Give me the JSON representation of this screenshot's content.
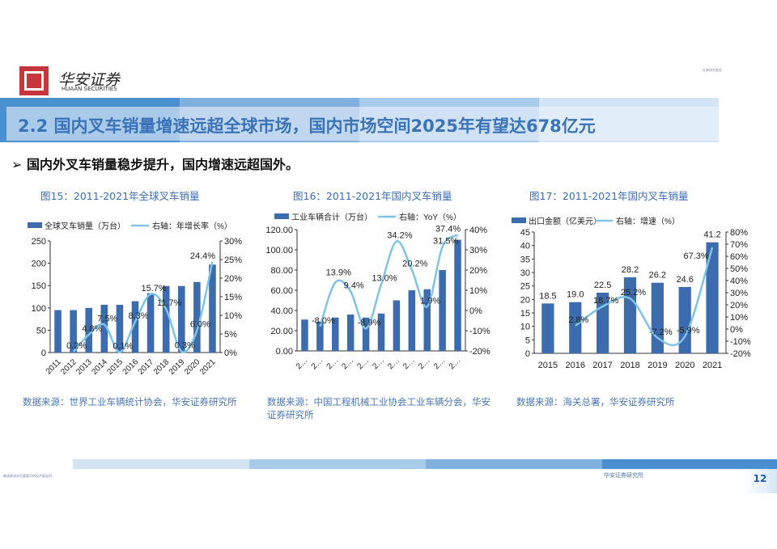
{
  "header": {
    "logo_cn": "华安证券",
    "logo_en": "HUAAN SECURITIES",
    "corner_text": "证券研究报告",
    "title": "2.2 国内叉车销量增速远超全球市场，国内市场空间2025年有望达678亿元",
    "bullet": "国内外叉车销量稳步提升，国内增速远超国外。"
  },
  "colors": {
    "bar": "#3c6cae",
    "line": "#7fc4e6",
    "title": "#3a73b8"
  },
  "chart_data": [
    {
      "type": "bar+line",
      "title": "图15：2011-2021年全球叉车销量",
      "categories": [
        "2011",
        "2012",
        "2013",
        "2014",
        "2015",
        "2016",
        "2017",
        "2018",
        "2019",
        "2020",
        "2021"
      ],
      "series": [
        {
          "name": "全球叉车销量（万台）",
          "type": "bar",
          "axis": "left",
          "values": [
            95,
            95,
            100,
            107,
            107,
            115,
            133,
            149,
            149,
            158,
            197
          ]
        },
        {
          "name": "右轴：年增长率（%）",
          "type": "line",
          "axis": "right",
          "values": [
            null,
            0.2,
            4.8,
            7.5,
            0.1,
            8.3,
            15.7,
            11.7,
            0.3,
            6.0,
            24.4
          ],
          "labels": [
            "",
            "0.2%",
            "4.8%",
            "7.5%",
            "0.1%",
            "8.3%",
            "15.7%",
            "11.7%",
            "0.3%",
            "6.0%",
            "24.4%"
          ]
        }
      ],
      "ylim": [
        0,
        250
      ],
      "yticks": [
        "0",
        "50",
        "100",
        "150",
        "200",
        "250"
      ],
      "y2lim": [
        0,
        30
      ],
      "y2ticks": [
        "0%",
        "5%",
        "10%",
        "15%",
        "20%",
        "25%",
        "30%"
      ],
      "xlabel_rotated": true,
      "legend": "top",
      "source": "数据来源：世界工业车辆统计协会，华安证券研究所"
    },
    {
      "type": "bar+line",
      "title": "图16：2011-2021年国内叉车销量",
      "categories": [
        "2…",
        "2…",
        "2…",
        "2…",
        "2…",
        "2…",
        "2…",
        "2…",
        "2…",
        "2…",
        "2…"
      ],
      "series": [
        {
          "name": "工业车辆合计（万台）",
          "type": "bar",
          "axis": "left",
          "values": [
            31,
            29,
            33,
            36,
            33,
            37,
            50,
            60,
            61,
            80,
            110
          ]
        },
        {
          "name": "右轴：YoY（%）",
          "type": "line",
          "axis": "right",
          "values": [
            null,
            -8.0,
            13.9,
            9.4,
            -8.9,
            13.0,
            34.2,
            20.2,
            1.9,
            31.5,
            37.4
          ],
          "labels": [
            "",
            "-8.0%",
            "13.9%",
            "9.4%",
            "-8.9%",
            "13.0%",
            "34.2%",
            "20.2%",
            "1.9%",
            "31.5%",
            "37.4%"
          ]
        }
      ],
      "ylim": [
        0,
        120
      ],
      "yticks": [
        "0.00",
        "20.00",
        "40.00",
        "60.00",
        "80.00",
        "100.00",
        "120.00"
      ],
      "y2lim": [
        -20,
        40
      ],
      "y2ticks": [
        "-20%",
        "-10%",
        "0%",
        "10%",
        "20%",
        "30%",
        "40%"
      ],
      "xlabel_rotated": true,
      "legend": "top",
      "source": "数据来源：中国工程机械工业协会工业车辆分会，华安证券研究所"
    },
    {
      "type": "bar+line",
      "title": "图17：2011-2021年国内叉车销量",
      "categories": [
        "2015",
        "2016",
        "2017",
        "2018",
        "2019",
        "2020",
        "2021"
      ],
      "series": [
        {
          "name": "出口金额（亿美元）",
          "type": "bar",
          "axis": "left",
          "values": [
            18.5,
            19.0,
            22.5,
            28.2,
            26.2,
            24.6,
            41.2
          ],
          "labels": [
            "18.5",
            "19.0",
            "22.5",
            "28.2",
            "26.2",
            "24.6",
            "41.2"
          ]
        },
        {
          "name": "右轴：增速（%）",
          "type": "line",
          "axis": "right",
          "values": [
            null,
            2.8,
            18.7,
            25.2,
            -7.2,
            -5.9,
            67.3
          ],
          "labels": [
            "",
            "2.8%",
            "18.7%",
            "25.2%",
            "-7.2%",
            "-5.9%",
            "67.3%"
          ]
        }
      ],
      "ylim": [
        0,
        45
      ],
      "yticks": [
        "0",
        "5",
        "10",
        "15",
        "20",
        "25",
        "30",
        "35",
        "40",
        "45"
      ],
      "y2lim": [
        -20,
        80
      ],
      "y2ticks": [
        "-20%",
        "-10%",
        "0%",
        "10%",
        "20%",
        "30%",
        "40%",
        "50%",
        "60%",
        "70%",
        "80%"
      ],
      "xlabel_rotated": false,
      "legend": "top",
      "source": "数据来源：海关总署，华安证券研究所"
    }
  ],
  "footer": {
    "left_text": "敬请参阅末页重要声明及评级说明",
    "firm": "华安证券研究所",
    "page": "12"
  }
}
